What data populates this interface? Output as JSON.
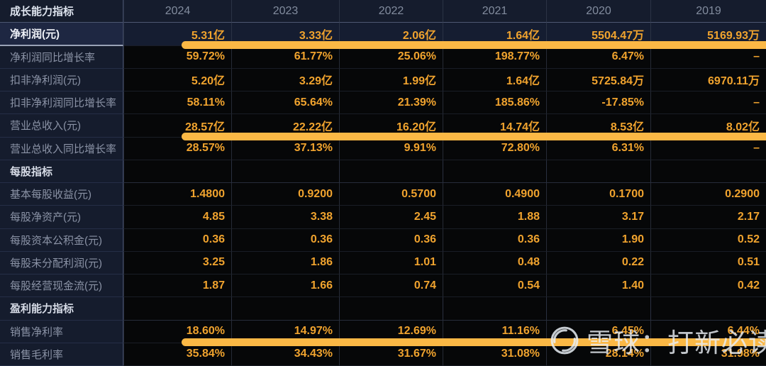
{
  "table": {
    "header": {
      "label": "成长能力指标",
      "years": [
        "2024",
        "2023",
        "2022",
        "2021",
        "2020",
        "2019"
      ]
    },
    "rows": [
      {
        "label": "净利润(元)",
        "type": "highlight",
        "underline": true,
        "values": [
          "5.31亿",
          "3.33亿",
          "2.06亿",
          "1.64亿",
          "5504.47万",
          "5169.93万"
        ]
      },
      {
        "label": "净利润同比增长率",
        "values": [
          "59.72%",
          "61.77%",
          "25.06%",
          "198.77%",
          "6.47%",
          "–"
        ]
      },
      {
        "label": "扣非净利润(元)",
        "values": [
          "5.20亿",
          "3.29亿",
          "1.99亿",
          "1.64亿",
          "5725.84万",
          "6970.11万"
        ]
      },
      {
        "label": "扣非净利润同比增长率",
        "values": [
          "58.11%",
          "65.64%",
          "21.39%",
          "185.86%",
          "-17.85%",
          "–"
        ]
      },
      {
        "label": "营业总收入(元)",
        "underline": true,
        "values": [
          "28.57亿",
          "22.22亿",
          "16.20亿",
          "14.74亿",
          "8.53亿",
          "8.02亿"
        ]
      },
      {
        "label": "营业总收入同比增长率",
        "values": [
          "28.57%",
          "37.13%",
          "9.91%",
          "72.80%",
          "6.31%",
          "–"
        ]
      },
      {
        "label": "每股指标",
        "type": "section",
        "values": [
          "",
          "",
          "",
          "",
          "",
          ""
        ]
      },
      {
        "label": "基本每股收益(元)",
        "values": [
          "1.4800",
          "0.9200",
          "0.5700",
          "0.4900",
          "0.1700",
          "0.2900"
        ]
      },
      {
        "label": "每股净资产(元)",
        "values": [
          "4.85",
          "3.38",
          "2.45",
          "1.88",
          "3.17",
          "2.17"
        ]
      },
      {
        "label": "每股资本公积金(元)",
        "values": [
          "0.36",
          "0.36",
          "0.36",
          "0.36",
          "1.90",
          "0.52"
        ]
      },
      {
        "label": "每股未分配利润(元)",
        "values": [
          "3.25",
          "1.86",
          "1.01",
          "0.48",
          "0.22",
          "0.51"
        ]
      },
      {
        "label": "每股经营现金流(元)",
        "values": [
          "1.87",
          "1.66",
          "0.74",
          "0.54",
          "1.40",
          "0.42"
        ]
      },
      {
        "label": "盈利能力指标",
        "type": "section",
        "values": [
          "",
          "",
          "",
          "",
          "",
          ""
        ]
      },
      {
        "label": "销售净利率",
        "underline": true,
        "values": [
          "18.60%",
          "14.97%",
          "12.69%",
          "11.16%",
          "6.45%",
          "6.44%"
        ]
      },
      {
        "label": "销售毛利率",
        "values": [
          "35.84%",
          "34.43%",
          "31.67%",
          "31.08%",
          "28.14%",
          "31.98%"
        ]
      }
    ]
  },
  "watermark": {
    "text": "雪球：打新必读",
    "logo": "xueqiu-logo"
  },
  "colors": {
    "value_orange": "#f0a32e",
    "marker_bar": "#fbb845",
    "panel_navy": "#151c2d",
    "highlight_navy": "#1e2742",
    "cell_black": "#060708",
    "label_gray": "#8b93a6",
    "header_text": "#828c9e"
  }
}
